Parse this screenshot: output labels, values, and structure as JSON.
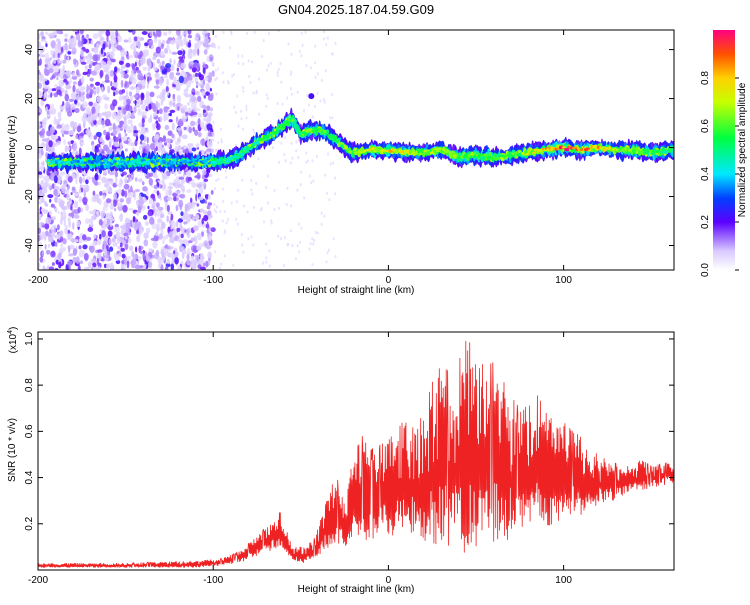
{
  "title": "GN04.2025.187.04.59.G09",
  "chart_data": [
    {
      "type": "heatmap",
      "xlabel": "Height of straight line (km)",
      "ylabel": "Frequency (Hz)",
      "xlim": [
        -200,
        163
      ],
      "ylim": [
        -50,
        48
      ],
      "xticks": [
        -200,
        -100,
        0,
        100
      ],
      "yticks": [
        -40,
        -20,
        0,
        20,
        40
      ],
      "colorbar": {
        "label": "Normalized spectral amplitude",
        "range": [
          0,
          1
        ],
        "ticks": [
          "0.0",
          "0.2",
          "0.4",
          "0.6",
          "0.8"
        ],
        "tick_values": [
          0.0,
          0.2,
          0.4,
          0.6,
          0.8
        ]
      },
      "ridge": {
        "x": [
          -200,
          -185,
          -170,
          -150,
          -130,
          -110,
          -100,
          -92,
          -85,
          -75,
          -65,
          -60,
          -55,
          -50,
          -45,
          -40,
          -35,
          -30,
          -25,
          -20,
          -10,
          0,
          10,
          20,
          30,
          40,
          50,
          60,
          70,
          80,
          90,
          100,
          110,
          120,
          130,
          140,
          150,
          163
        ],
        "frequency": [
          -6,
          -6,
          -6,
          -6,
          -6,
          -6,
          -6,
          -5,
          -3,
          2,
          6,
          9,
          12,
          5,
          7,
          7,
          6,
          3,
          0,
          -2,
          -1,
          -1,
          -2,
          -2,
          -1,
          -4,
          -3,
          -4,
          -3,
          -2,
          -1,
          0,
          -1,
          0,
          -1,
          -1,
          -2,
          -1
        ],
        "amplitude": [
          0.35,
          0.4,
          0.35,
          0.4,
          0.4,
          0.35,
          0.4,
          0.45,
          0.45,
          0.5,
          0.55,
          0.6,
          0.55,
          0.55,
          0.6,
          0.6,
          0.55,
          0.5,
          0.6,
          0.6,
          0.7,
          0.75,
          0.7,
          0.65,
          0.65,
          0.6,
          0.6,
          0.55,
          0.55,
          0.65,
          0.8,
          0.9,
          0.85,
          0.8,
          0.7,
          0.6,
          0.55,
          0.5
        ]
      },
      "noise_region": {
        "x_range": [
          -200,
          -100
        ],
        "frequency_range": [
          -50,
          48
        ],
        "amplitude": 0.1
      }
    },
    {
      "type": "line",
      "xlabel": "Height of straight line (km)",
      "ylabel": "SNR (10 * v/v)",
      "y_multiplier": "(x10",
      "y_multiplier_exp": "4",
      "y_multiplier_close": ")",
      "xlim": [
        -200,
        163
      ],
      "ylim": [
        0,
        1.03
      ],
      "xticks": [
        -200,
        -100,
        0,
        100
      ],
      "yticks": [
        0.2,
        0.4,
        0.6,
        0.8,
        1.0
      ],
      "series": [
        {
          "color": "#ee2222",
          "envelope": {
            "x": [
              -200,
              -150,
              -110,
              -95,
              -85,
              -75,
              -68,
              -62,
              -55,
              -48,
              -42,
              -37,
              -30,
              -25,
              -20,
              -15,
              -10,
              -5,
              0,
              5,
              10,
              15,
              20,
              25,
              30,
              35,
              40,
              45,
              50,
              55,
              60,
              65,
              70,
              75,
              80,
              85,
              90,
              95,
              100,
              105,
              110,
              115,
              120,
              125,
              130,
              135,
              140,
              145,
              150,
              155,
              163
            ],
            "upper": [
              0.03,
              0.03,
              0.04,
              0.05,
              0.08,
              0.15,
              0.2,
              0.26,
              0.1,
              0.1,
              0.14,
              0.26,
              0.42,
              0.28,
              0.5,
              0.58,
              0.52,
              0.54,
              0.58,
              0.62,
              0.66,
              0.66,
              0.7,
              0.84,
              0.88,
              0.86,
              0.9,
              1.01,
              0.92,
              0.88,
              0.9,
              0.85,
              0.8,
              0.68,
              0.72,
              0.76,
              0.68,
              0.64,
              0.66,
              0.6,
              0.6,
              0.52,
              0.5,
              0.48,
              0.46,
              0.45,
              0.46,
              0.48,
              0.45,
              0.46,
              0.47
            ],
            "lower": [
              0.01,
              0.01,
              0.01,
              0.02,
              0.03,
              0.06,
              0.08,
              0.1,
              0.04,
              0.03,
              0.05,
              0.08,
              0.1,
              0.1,
              0.12,
              0.14,
              0.12,
              0.16,
              0.12,
              0.14,
              0.16,
              0.14,
              0.12,
              0.1,
              0.12,
              0.1,
              0.08,
              0.06,
              0.1,
              0.12,
              0.1,
              0.14,
              0.12,
              0.16,
              0.18,
              0.2,
              0.18,
              0.2,
              0.22,
              0.24,
              0.2,
              0.24,
              0.28,
              0.3,
              0.3,
              0.32,
              0.34,
              0.34,
              0.36,
              0.36,
              0.38
            ]
          }
        }
      ]
    }
  ]
}
